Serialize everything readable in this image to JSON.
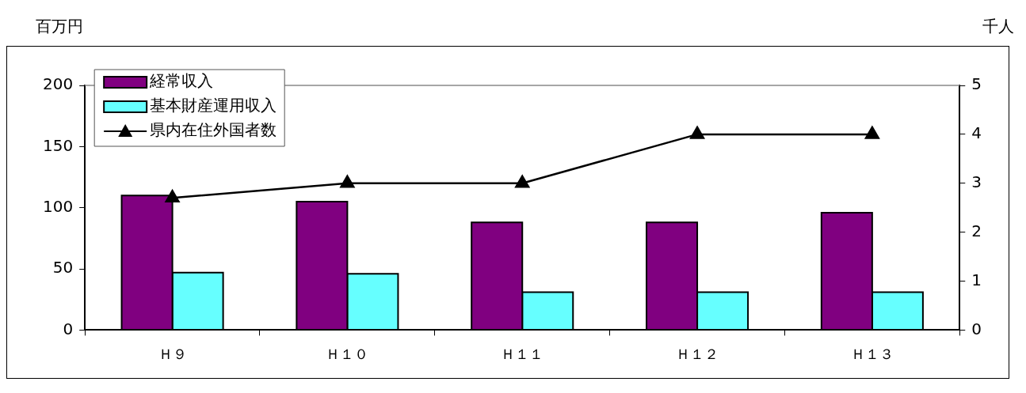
{
  "chart_data": {
    "type": "bar",
    "ylabel": "百万円",
    "y2label": "千人",
    "categories": [
      "Ｈ９",
      "Ｈ１０",
      "Ｈ１１",
      "Ｈ１２",
      "Ｈ１３"
    ],
    "series": [
      {
        "name": "経常収入",
        "color": "#800080",
        "values": [
          110,
          105,
          88,
          88,
          96
        ]
      },
      {
        "name": "基本財産運用収入",
        "color": "#66ffff",
        "values": [
          47,
          46,
          31,
          31,
          31
        ]
      },
      {
        "name": "県内在住外国者数",
        "type": "line",
        "axis": "y2",
        "color": "#000000",
        "marker": "triangle",
        "values": [
          2.7,
          3,
          3,
          4,
          4
        ]
      }
    ],
    "ylim": [
      0,
      200
    ],
    "yticks": [
      0,
      50,
      100,
      150,
      200
    ],
    "y2lim": [
      0,
      5
    ],
    "y2ticks": [
      0,
      1,
      2,
      3,
      4,
      5
    ],
    "grid": false,
    "legend": "top left"
  }
}
